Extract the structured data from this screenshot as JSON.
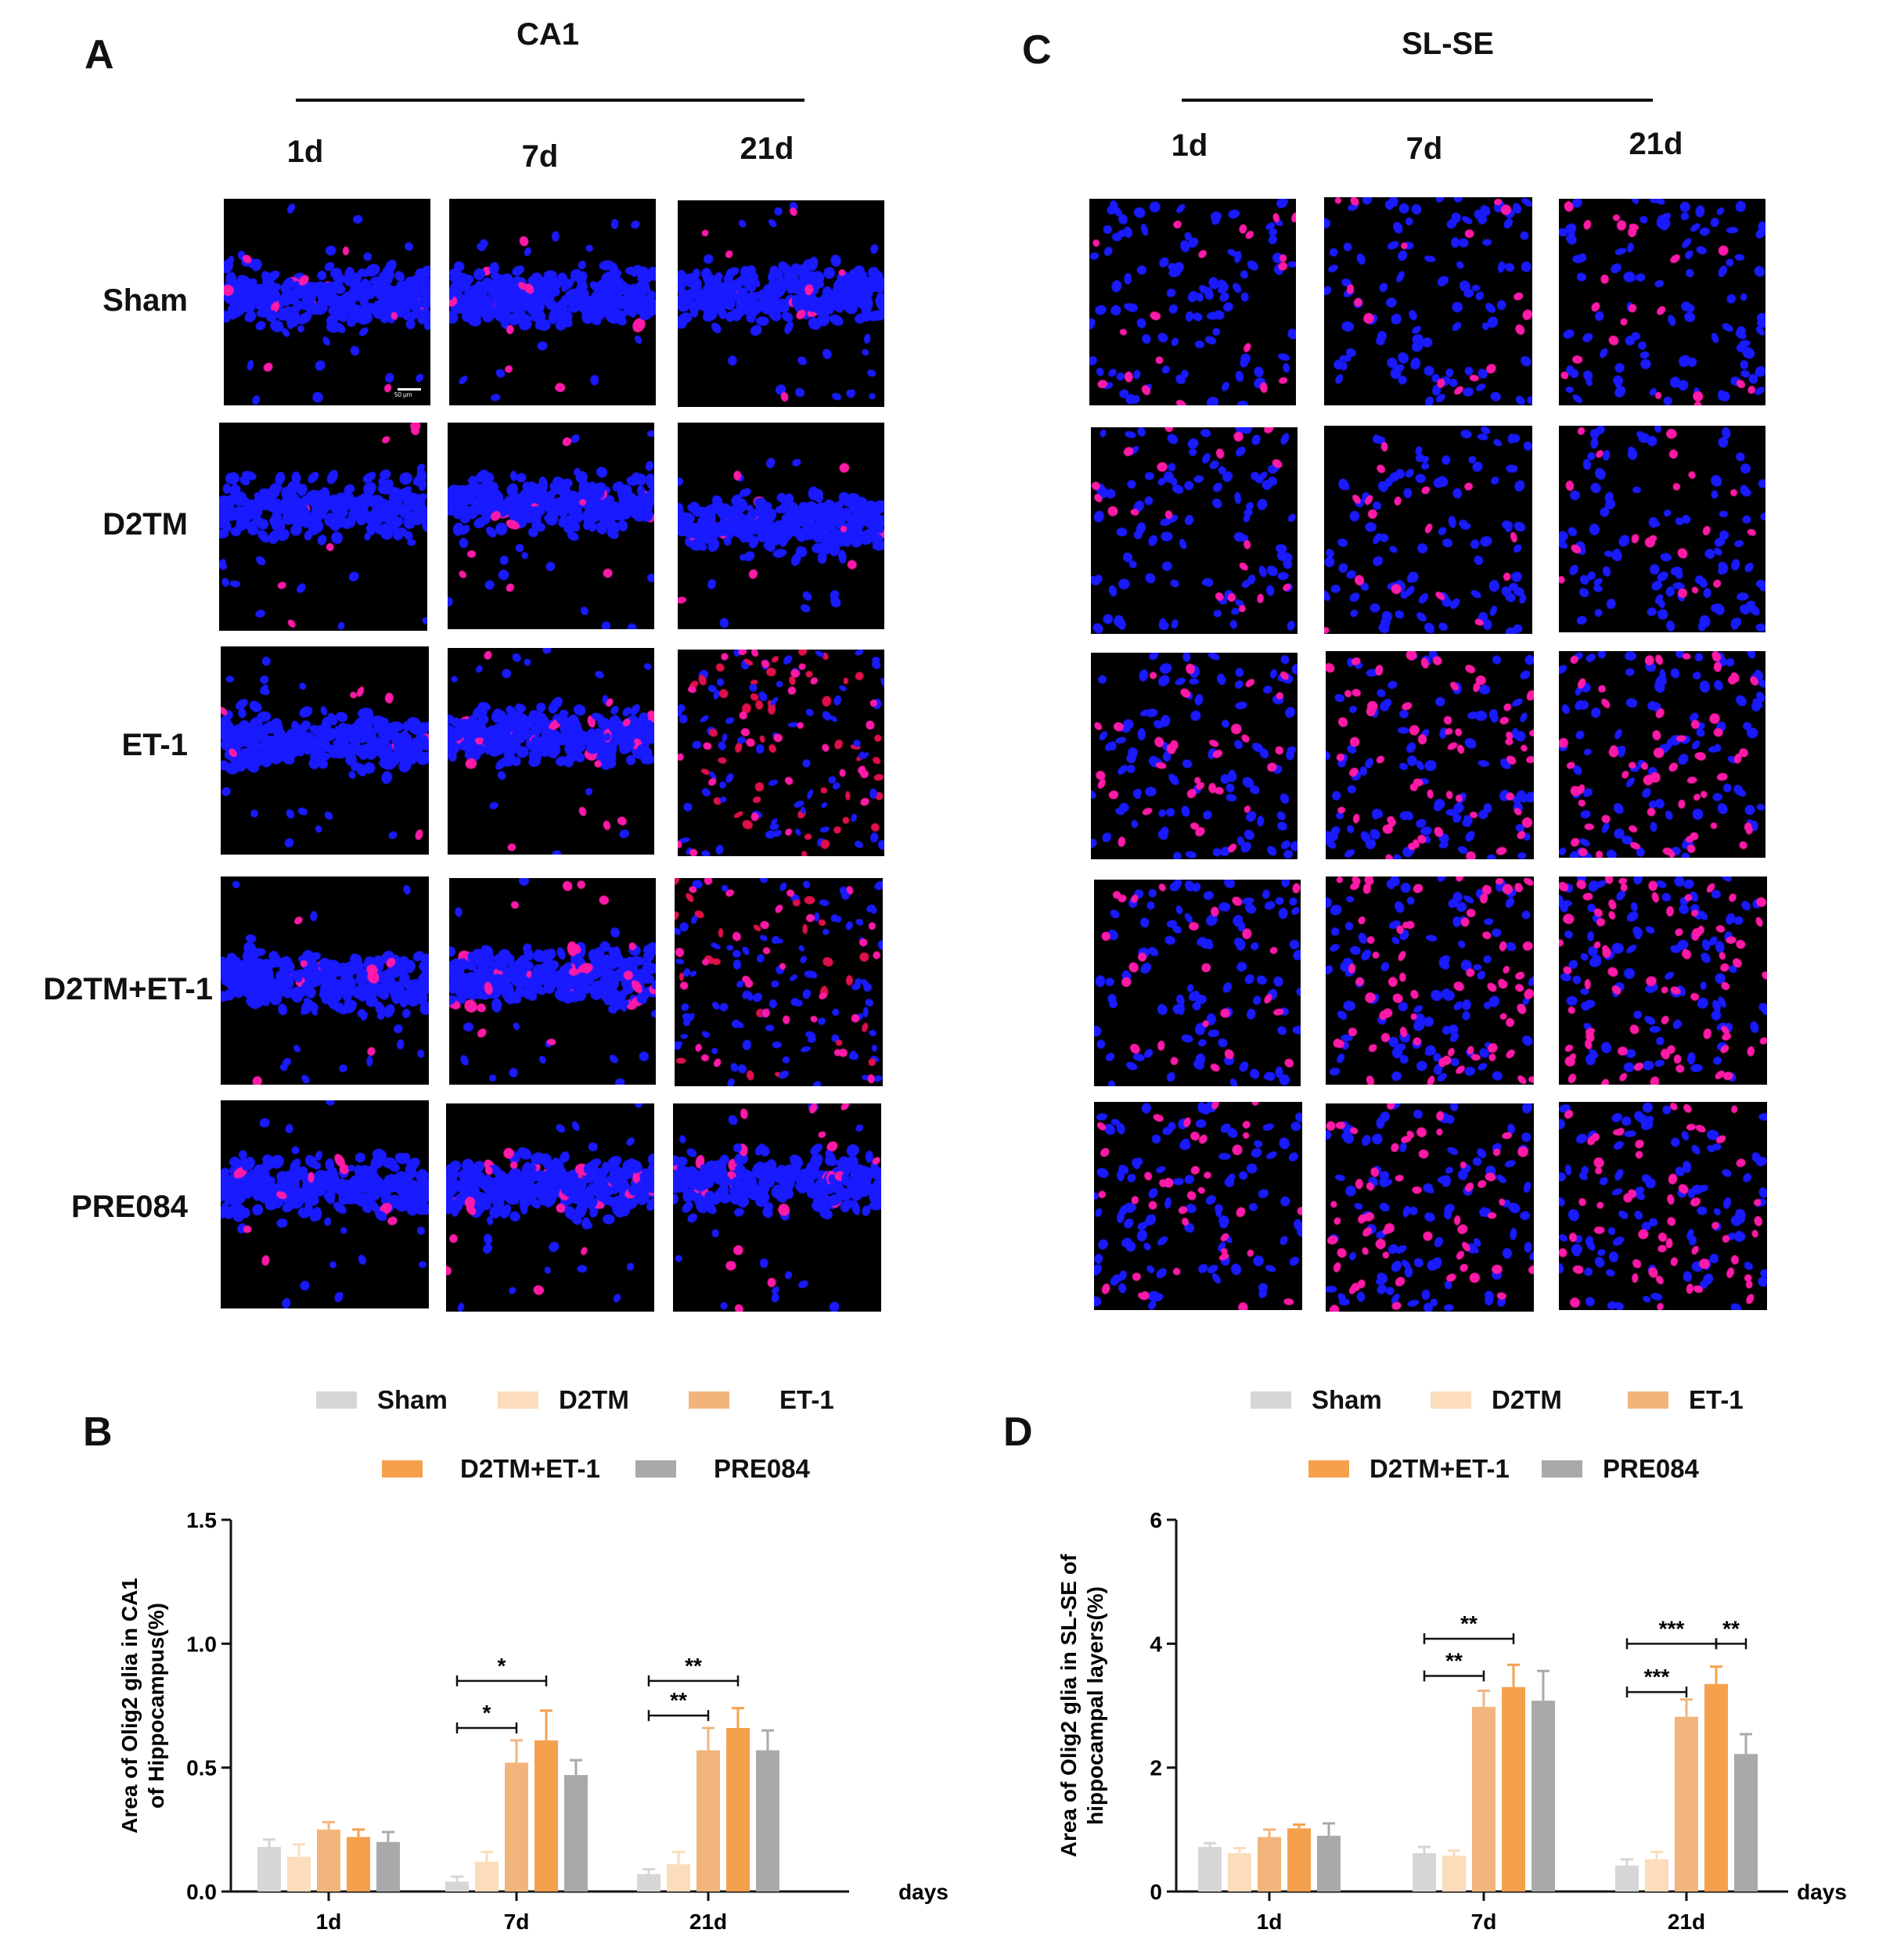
{
  "panels": {
    "A": "A",
    "B": "B",
    "C": "C",
    "D": "D"
  },
  "regions": {
    "ca1": "CA1",
    "slse": "SL-SE"
  },
  "timepoints": [
    "1d",
    "7d",
    "21d"
  ],
  "groups": [
    "Sham",
    "D2TM",
    "ET-1",
    "D2TM+ET-1",
    "PRE084"
  ],
  "colors": {
    "Sham": "#d6d6d6",
    "D2TM": "#fbdcbb",
    "ET-1": "#f1b57c",
    "D2TM+ET-1": "#f5a04d",
    "PRE084": "#a9a9ab",
    "nucleus": "#1a1aff",
    "olig2": "#ff1aa8"
  },
  "scale_bar_label": "50 μm",
  "legend": {
    "row1": [
      "Sham",
      "D2TM",
      "ET-1"
    ],
    "row2": [
      "D2TM+ET-1",
      "PRE084"
    ]
  },
  "chart_data": [
    {
      "type": "bar",
      "panel": "B",
      "categories": [
        "1d",
        "7d",
        "21d"
      ],
      "xlabel": "days",
      "ylabel_line1": "Area of Olig2 glia in CA1",
      "ylabel_line2": "of Hippocampus(%)",
      "ylim": [
        0,
        1.5
      ],
      "yticks": [
        "0.0",
        "0.5",
        "1.0",
        "1.5"
      ],
      "series": [
        {
          "name": "Sham",
          "values": [
            0.18,
            0.04,
            0.07
          ],
          "errors": [
            0.03,
            0.02,
            0.02
          ]
        },
        {
          "name": "D2TM",
          "values": [
            0.14,
            0.12,
            0.11
          ],
          "errors": [
            0.05,
            0.04,
            0.05
          ]
        },
        {
          "name": "ET-1",
          "values": [
            0.25,
            0.52,
            0.57
          ],
          "errors": [
            0.03,
            0.09,
            0.09
          ]
        },
        {
          "name": "D2TM+ET-1",
          "values": [
            0.22,
            0.61,
            0.66
          ],
          "errors": [
            0.03,
            0.12,
            0.08
          ]
        },
        {
          "name": "PRE084",
          "values": [
            0.2,
            0.47,
            0.57
          ],
          "errors": [
            0.04,
            0.06,
            0.08
          ]
        }
      ],
      "significance": [
        {
          "category": "7d",
          "from": "Sham",
          "to": "ET-1",
          "label": "*",
          "level": 0.66
        },
        {
          "category": "7d",
          "from": "Sham",
          "to": "D2TM+ET-1",
          "label": "*",
          "level": 0.85
        },
        {
          "category": "21d",
          "from": "Sham",
          "to": "ET-1",
          "label": "**",
          "level": 0.71
        },
        {
          "category": "21d",
          "from": "Sham",
          "to": "D2TM+ET-1",
          "label": "**",
          "level": 0.85
        }
      ],
      "grid": false,
      "legend_position": "top"
    },
    {
      "type": "bar",
      "panel": "D",
      "categories": [
        "1d",
        "7d",
        "21d"
      ],
      "xlabel": "days",
      "ylabel_line1": "Area of Olig2 glia in  SL-SE of",
      "ylabel_line2": "hippocampal layers(%)",
      "ylim": [
        0,
        6
      ],
      "yticks": [
        "0",
        "2",
        "4",
        "6"
      ],
      "series": [
        {
          "name": "Sham",
          "values": [
            0.72,
            0.62,
            0.42
          ],
          "errors": [
            0.06,
            0.1,
            0.1
          ]
        },
        {
          "name": "D2TM",
          "values": [
            0.62,
            0.58,
            0.52
          ],
          "errors": [
            0.08,
            0.08,
            0.12
          ]
        },
        {
          "name": "ET-1",
          "values": [
            0.88,
            2.98,
            2.82
          ],
          "errors": [
            0.12,
            0.26,
            0.28
          ]
        },
        {
          "name": "D2TM+ET-1",
          "values": [
            1.02,
            3.3,
            3.35
          ],
          "errors": [
            0.06,
            0.36,
            0.28
          ]
        },
        {
          "name": "PRE084",
          "values": [
            0.9,
            3.08,
            2.22
          ],
          "errors": [
            0.2,
            0.48,
            0.32
          ]
        }
      ],
      "significance": [
        {
          "category": "7d",
          "from": "Sham",
          "to": "ET-1",
          "label": "**",
          "level": 3.48
        },
        {
          "category": "7d",
          "from": "Sham",
          "to": "D2TM+ET-1",
          "label": "**",
          "level": 4.08
        },
        {
          "category": "21d",
          "from": "Sham",
          "to": "ET-1",
          "label": "***",
          "level": 3.22
        },
        {
          "category": "21d",
          "from": "Sham",
          "to": "D2TM+ET-1",
          "label": "***",
          "level": 4.0
        },
        {
          "category": "21d",
          "from": "D2TM+ET-1",
          "to": "PRE084",
          "label": "**",
          "level": 4.0
        }
      ],
      "grid": false,
      "legend_position": "top"
    }
  ]
}
